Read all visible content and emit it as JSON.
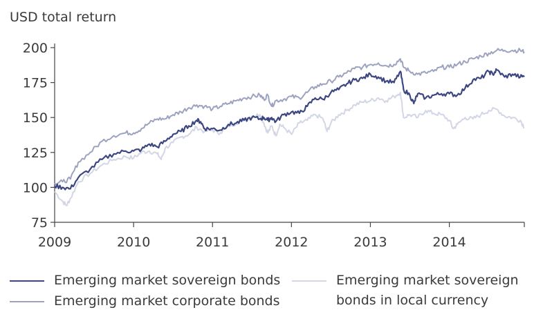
{
  "chart_data": {
    "type": "line",
    "title": "",
    "ylabel": "USD total return",
    "xlabel": "",
    "ylim": [
      75,
      200
    ],
    "xlim": [
      2009,
      2014.95
    ],
    "yticks": [
      "75",
      "100",
      "125",
      "150",
      "175",
      "200"
    ],
    "xticks": [
      "2009",
      "2010",
      "2011",
      "2012",
      "2013",
      "2014"
    ],
    "grid": false,
    "legend_position": "bottom",
    "series": [
      {
        "name": "Emerging market sovereign bonds",
        "color": "#3c4680",
        "x": [
          2009.0,
          2009.1,
          2009.2,
          2009.3,
          2009.45,
          2009.6,
          2009.75,
          2009.9,
          2010.0,
          2010.1,
          2010.2,
          2010.3,
          2010.4,
          2010.5,
          2010.6,
          2010.7,
          2010.8,
          2010.85,
          2010.9,
          2011.0,
          2011.1,
          2011.2,
          2011.3,
          2011.4,
          2011.5,
          2011.6,
          2011.65,
          2011.7,
          2011.75,
          2011.8,
          2011.9,
          2012.0,
          2012.1,
          2012.2,
          2012.3,
          2012.4,
          2012.5,
          2012.6,
          2012.7,
          2012.8,
          2012.9,
          2013.0,
          2013.1,
          2013.2,
          2013.3,
          2013.38,
          2013.42,
          2013.5,
          2013.55,
          2013.6,
          2013.7,
          2013.8,
          2013.9,
          2014.0,
          2014.1,
          2014.2,
          2014.3,
          2014.4,
          2014.5,
          2014.55,
          2014.6,
          2014.7,
          2014.8,
          2014.9,
          2014.95
        ],
        "y": [
          101,
          100,
          99,
          107,
          113,
          120,
          124,
          126,
          126,
          127,
          131,
          129,
          133,
          138,
          140,
          144,
          148,
          147,
          142,
          142,
          141,
          145,
          146,
          148,
          150,
          149,
          150,
          148,
          150,
          147,
          152,
          154,
          153,
          158,
          164,
          163,
          168,
          170,
          174,
          177,
          178,
          181,
          179,
          176,
          175,
          183,
          170,
          166,
          160,
          167,
          164,
          166,
          167,
          167,
          166,
          171,
          177,
          178,
          183,
          181,
          184,
          179,
          181,
          179,
          180
        ]
      },
      {
        "name": "Emerging market corporate bonds",
        "color": "#9da3bf",
        "x": [
          2009.0,
          2009.1,
          2009.2,
          2009.3,
          2009.45,
          2009.6,
          2009.75,
          2009.9,
          2010.0,
          2010.1,
          2010.2,
          2010.3,
          2010.4,
          2010.5,
          2010.6,
          2010.7,
          2010.8,
          2010.9,
          2011.0,
          2011.1,
          2011.2,
          2011.3,
          2011.4,
          2011.5,
          2011.6,
          2011.65,
          2011.7,
          2011.75,
          2011.8,
          2011.9,
          2012.0,
          2012.1,
          2012.2,
          2012.3,
          2012.4,
          2012.5,
          2012.6,
          2012.7,
          2012.8,
          2012.9,
          2013.0,
          2013.1,
          2013.2,
          2013.3,
          2013.38,
          2013.42,
          2013.5,
          2013.6,
          2013.7,
          2013.8,
          2013.9,
          2014.0,
          2014.1,
          2014.2,
          2014.3,
          2014.4,
          2014.5,
          2014.6,
          2014.7,
          2014.8,
          2014.9,
          2014.95
        ],
        "y": [
          103,
          104,
          106,
          118,
          125,
          133,
          137,
          139,
          139,
          142,
          146,
          149,
          149,
          152,
          154,
          157,
          159,
          158,
          156,
          158,
          160,
          162,
          164,
          165,
          166,
          163,
          166,
          158,
          162,
          163,
          165,
          164,
          168,
          172,
          174,
          176,
          179,
          182,
          185,
          186,
          188,
          189,
          187,
          188,
          192,
          186,
          183,
          181,
          182,
          183,
          186,
          186,
          188,
          190,
          192,
          194,
          196,
          198,
          198,
          198,
          198,
          197
        ]
      },
      {
        "name": "Emerging market sovereign bonds in local currency",
        "color": "#d3d6e5",
        "x": [
          2009.0,
          2009.1,
          2009.15,
          2009.2,
          2009.3,
          2009.45,
          2009.6,
          2009.75,
          2009.9,
          2010.0,
          2010.1,
          2010.2,
          2010.3,
          2010.35,
          2010.4,
          2010.5,
          2010.6,
          2010.7,
          2010.8,
          2010.9,
          2011.0,
          2011.1,
          2011.2,
          2011.3,
          2011.4,
          2011.5,
          2011.6,
          2011.65,
          2011.7,
          2011.75,
          2011.8,
          2011.85,
          2011.9,
          2012.0,
          2012.1,
          2012.2,
          2012.3,
          2012.4,
          2012.45,
          2012.5,
          2012.6,
          2012.7,
          2012.8,
          2012.9,
          2013.0,
          2013.1,
          2013.2,
          2013.3,
          2013.38,
          2013.42,
          2013.5,
          2013.6,
          2013.7,
          2013.8,
          2013.9,
          2014.0,
          2014.05,
          2014.1,
          2014.2,
          2014.3,
          2014.4,
          2014.5,
          2014.6,
          2014.7,
          2014.8,
          2014.9,
          2014.95
        ],
        "y": [
          97,
          90,
          87,
          92,
          104,
          110,
          116,
          120,
          122,
          121,
          125,
          126,
          124,
          120,
          128,
          132,
          136,
          138,
          143,
          140,
          141,
          139,
          144,
          146,
          149,
          151,
          152,
          146,
          139,
          144,
          137,
          145,
          143,
          138,
          146,
          148,
          152,
          149,
          140,
          146,
          152,
          155,
          159,
          161,
          162,
          164,
          162,
          165,
          168,
          150,
          152,
          150,
          155,
          153,
          152,
          148,
          142,
          145,
          150,
          149,
          152,
          155,
          156,
          151,
          150,
          148,
          143
        ]
      }
    ]
  },
  "legend": {
    "items": [
      {
        "label": "Emerging market sovereign bonds",
        "color": "#3c4680"
      },
      {
        "label": "Emerging market corporate bonds",
        "color": "#9da3bf"
      },
      {
        "label_line1": "Emerging market sovereign",
        "label_line2": "bonds in local currency",
        "color": "#d3d6e5"
      }
    ]
  }
}
